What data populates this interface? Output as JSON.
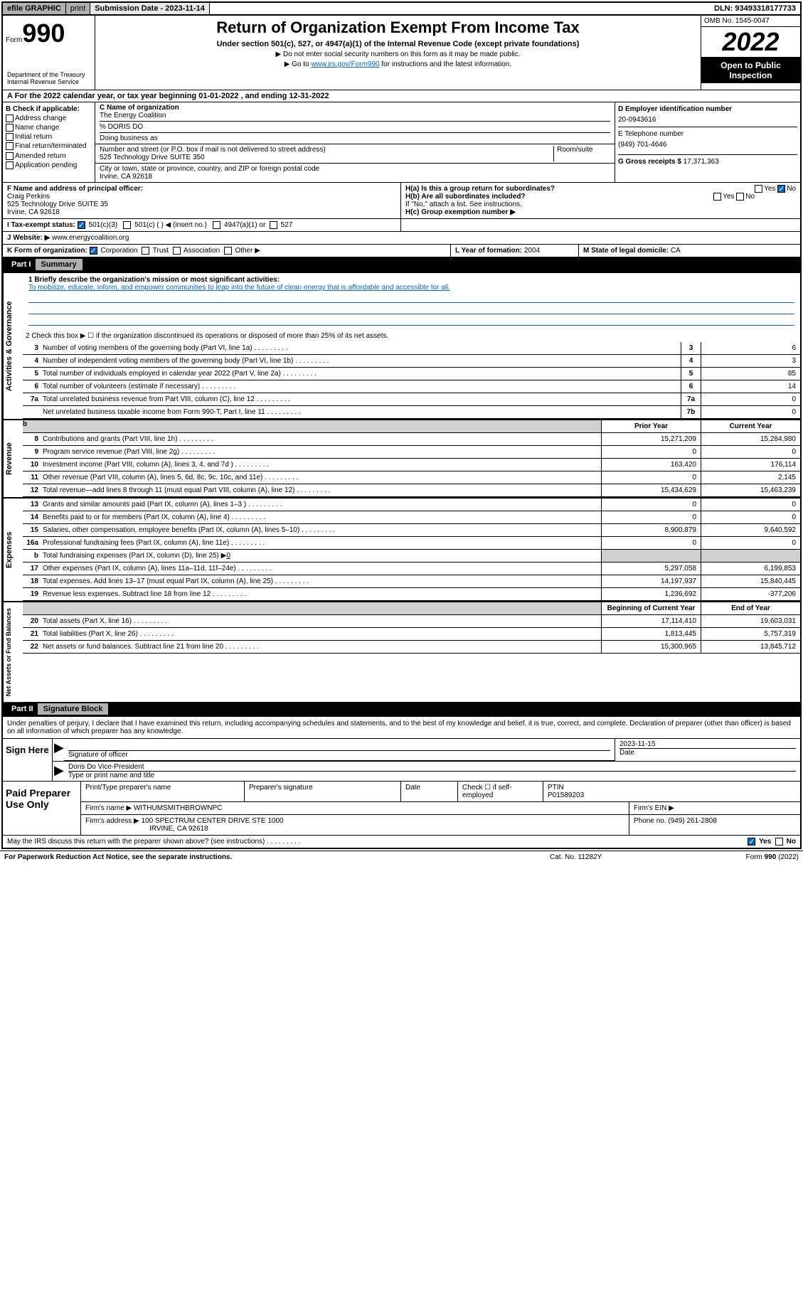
{
  "top": {
    "efile": "efile GRAPHIC",
    "print": "print",
    "subdate_label": "Submission Date - ",
    "subdate": "2023-11-14",
    "dln": "DLN: 93493318177733"
  },
  "header": {
    "form_prefix": "Form",
    "form_num": "990",
    "title": "Return of Organization Exempt From Income Tax",
    "subtitle": "Under section 501(c), 527, or 4947(a)(1) of the Internal Revenue Code (except private foundations)",
    "instr1": "▶ Do not enter social security numbers on this form as it may be made public.",
    "instr2_pre": "▶ Go to ",
    "instr2_link": "www.irs.gov/Form990",
    "instr2_post": " for instructions and the latest information.",
    "dept": "Department of the Treasury\nInternal Revenue Service",
    "omb": "OMB No. 1545-0047",
    "year": "2022",
    "public": "Open to Public Inspection"
  },
  "tax_year": {
    "prefix": "A For the 2022 calendar year, or tax year beginning ",
    "begin": "01-01-2022",
    "mid": " , and ending ",
    "end": "12-31-2022"
  },
  "box_b": {
    "header": "B Check if applicable:",
    "items": [
      "Address change",
      "Name change",
      "Initial return",
      "Final return/terminated",
      "Amended return",
      "Application pending"
    ]
  },
  "box_c": {
    "name_label": "C Name of organization",
    "name": "The Energy Coalition",
    "care_of": "% DORIS DO",
    "dba_label": "Doing business as",
    "addr_label": "Number and street (or P.O. box if mail is not delivered to street address)",
    "room_label": "Room/suite",
    "addr": "525 Technology Drive SUITE 350",
    "city_label": "City or town, state or province, country, and ZIP or foreign postal code",
    "city": "Irvine, CA  92618"
  },
  "box_d": {
    "ein_label": "D Employer identification number",
    "ein": "20-0943616",
    "phone_label": "E Telephone number",
    "phone": "(949) 701-4646",
    "gross_label": "G Gross receipts $ ",
    "gross": "17,371,363"
  },
  "box_f": {
    "label": "F Name and address of principal officer:",
    "name": "Craig Perkins",
    "addr": "525 Technology Drive SUITE 35",
    "city": "Irvine, CA  92618"
  },
  "box_h": {
    "ha_label": "H(a)  Is this a group return for subordinates?",
    "hb_label": "H(b)  Are all subordinates included?",
    "hb_note": "If \"No,\" attach a list. See instructions.",
    "hc_label": "H(c)  Group exemption number ▶",
    "yes": "Yes",
    "no": "No"
  },
  "box_i": {
    "label": "I     Tax-exempt status:",
    "opts": [
      "501(c)(3)",
      "501(c) (  ) ◀ (insert no.)",
      "4947(a)(1) or",
      "527"
    ]
  },
  "box_j": {
    "label": "J     Website: ▶",
    "value": "www.energycoalition.org"
  },
  "box_k": {
    "label": "K Form of organization:",
    "opts": [
      "Corporation",
      "Trust",
      "Association",
      "Other ▶"
    ]
  },
  "box_l": {
    "label": "L Year of formation: ",
    "value": "2004"
  },
  "box_m": {
    "label": "M State of legal domicile: ",
    "value": "CA"
  },
  "part1": {
    "label": "Part I",
    "title": "Summary"
  },
  "governance": {
    "vert": "Activities & Governance",
    "l1_label": "1   Briefly describe the organization's mission or most significant activities:",
    "l1_text": "To mobilize, educate, inform, and empower communities to leap into the future of clean energy that is affordable and accessible for all.",
    "l2": "2   Check this box ▶ ☐  if the organization discontinued its operations or disposed of more than 25% of its net assets.",
    "l3": "Number of voting members of the governing body (Part VI, line 1a)",
    "l3v": "6",
    "l4": "Number of independent voting members of the governing body (Part VI, line 1b)",
    "l4v": "3",
    "l5": "Total number of individuals employed in calendar year 2022 (Part V, line 2a)",
    "l5v": "85",
    "l6": "Total number of volunteers (estimate if necessary)",
    "l6v": "14",
    "l7a": "Total unrelated business revenue from Part VIII, column (C), line 12",
    "l7av": "0",
    "l7b": "Net unrelated business taxable income from Form 990-T, Part I, line 11",
    "l7bv": "0"
  },
  "revenue": {
    "vert": "Revenue",
    "prior_hdr": "Prior Year",
    "current_hdr": "Current Year",
    "rows": [
      {
        "n": "8",
        "d": "Contributions and grants (Part VIII, line 1h)",
        "p": "15,271,209",
        "c": "15,284,980"
      },
      {
        "n": "9",
        "d": "Program service revenue (Part VIII, line 2g)",
        "p": "0",
        "c": "0"
      },
      {
        "n": "10",
        "d": "Investment income (Part VIII, column (A), lines 3, 4, and 7d )",
        "p": "163,420",
        "c": "176,114"
      },
      {
        "n": "11",
        "d": "Other revenue (Part VIII, column (A), lines 5, 6d, 8c, 9c, 10c, and 11e)",
        "p": "0",
        "c": "2,145"
      },
      {
        "n": "12",
        "d": "Total revenue—add lines 8 through 11 (must equal Part VIII, column (A), line 12)",
        "p": "15,434,629",
        "c": "15,463,239"
      }
    ]
  },
  "expenses": {
    "vert": "Expenses",
    "rows": [
      {
        "n": "13",
        "d": "Grants and similar amounts paid (Part IX, column (A), lines 1–3 )",
        "p": "0",
        "c": "0"
      },
      {
        "n": "14",
        "d": "Benefits paid to or for members (Part IX, column (A), line 4)",
        "p": "0",
        "c": "0"
      },
      {
        "n": "15",
        "d": "Salaries, other compensation, employee benefits (Part IX, column (A), lines 5–10)",
        "p": "8,900,879",
        "c": "9,640,592"
      },
      {
        "n": "16a",
        "d": "Professional fundraising fees (Part IX, column (A), line 11e)",
        "p": "0",
        "c": "0"
      }
    ],
    "l16b_pre": "Total fundraising expenses (Part IX, column (D), line 25) ▶",
    "l16b_val": "0",
    "rows2": [
      {
        "n": "17",
        "d": "Other expenses (Part IX, column (A), lines 11a–11d, 11f–24e)",
        "p": "5,297,058",
        "c": "6,199,853"
      },
      {
        "n": "18",
        "d": "Total expenses. Add lines 13–17 (must equal Part IX, column (A), line 25)",
        "p": "14,197,937",
        "c": "15,840,445"
      },
      {
        "n": "19",
        "d": "Revenue less expenses. Subtract line 18 from line 12",
        "p": "1,236,692",
        "c": "-377,206"
      }
    ]
  },
  "netassets": {
    "vert": "Net Assets or Fund Balances",
    "begin_hdr": "Beginning of Current Year",
    "end_hdr": "End of Year",
    "rows": [
      {
        "n": "20",
        "d": "Total assets (Part X, line 16)",
        "p": "17,114,410",
        "c": "19,603,031"
      },
      {
        "n": "21",
        "d": "Total liabilities (Part X, line 26)",
        "p": "1,813,445",
        "c": "5,757,319"
      },
      {
        "n": "22",
        "d": "Net assets or fund balances. Subtract line 21 from line 20",
        "p": "15,300,965",
        "c": "13,845,712"
      }
    ]
  },
  "part2": {
    "label": "Part II",
    "title": "Signature Block"
  },
  "sig": {
    "disclaimer": "Under penalties of perjury, I declare that I have examined this return, including accompanying schedules and statements, and to the best of my knowledge and belief, it is true, correct, and complete. Declaration of preparer (other than officer) is based on all information of which preparer has any knowledge.",
    "sign_here": "Sign Here",
    "sig_officer": "Signature of officer",
    "date_label": "Date",
    "date": "2023-11-15",
    "name_title": "Doris Do  Vice-President",
    "type_name": "Type or print name and title"
  },
  "paid": {
    "label": "Paid Preparer Use Only",
    "col1": "Print/Type preparer's name",
    "col2": "Preparer's signature",
    "col3": "Date",
    "col4_check": "Check ☐ if self-employed",
    "col5_label": "PTIN",
    "col5": "P01589203",
    "firm_label": "Firm's name    ▶",
    "firm": "WITHUMSMITHBROWNPC",
    "ein_label": "Firm's EIN ▶",
    "addr_label": "Firm's address ▶",
    "addr": "100 SPECTRUM CENTER DRIVE STE 1000",
    "city": "IRVINE, CA  92618",
    "phone_label": "Phone no. ",
    "phone": "(949) 261-2808"
  },
  "footer": {
    "discuss": "May the IRS discuss this return with the preparer shown above? (see instructions)",
    "paperwork": "For Paperwork Reduction Act Notice, see the separate instructions.",
    "cat": "Cat. No. 11282Y",
    "form": "Form 990 (2022)"
  }
}
